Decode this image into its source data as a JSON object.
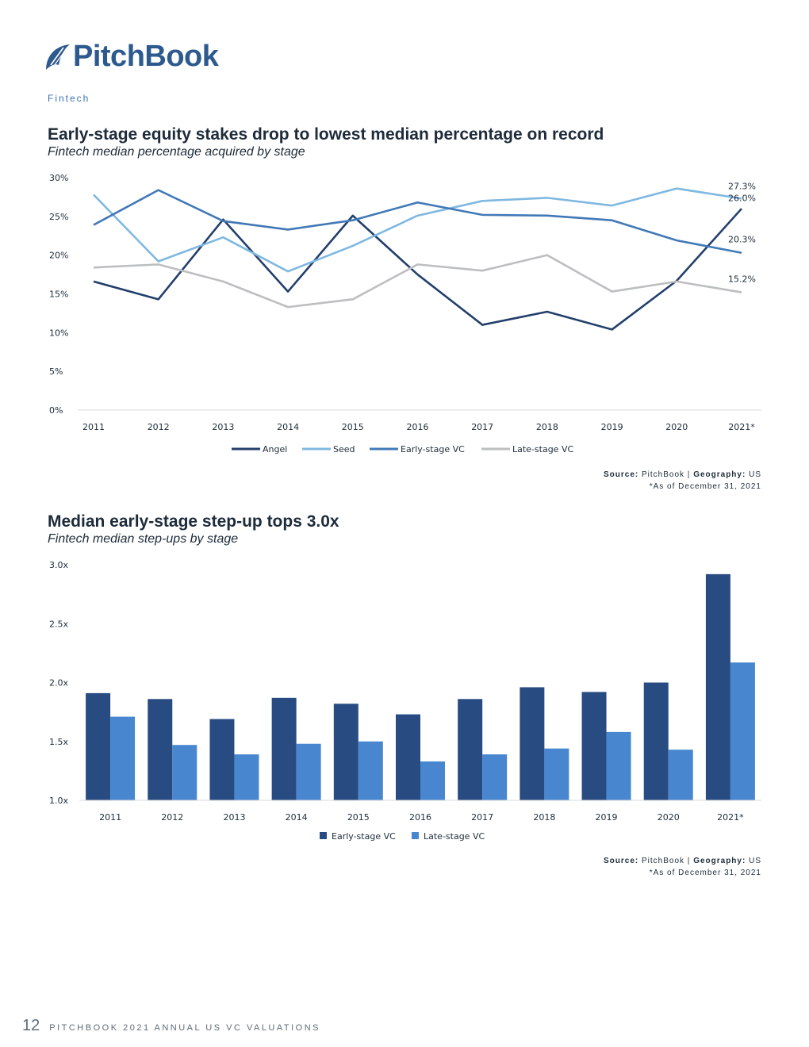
{
  "brand": {
    "name": "PitchBook"
  },
  "section_label": "Fintech",
  "chart1": {
    "title": "Early-stage equity stakes drop to lowest median percentage on record",
    "subtitle": "Fintech median percentage acquired by stage",
    "source_label": "Source:",
    "source_value": "PitchBook |",
    "geo_label": "Geography:",
    "geo_value": "US",
    "note": "*As of December 31, 2021"
  },
  "chart2": {
    "title": "Median early-stage step-up tops 3.0x",
    "subtitle": "Fintech median step-ups by stage",
    "source_label": "Source:",
    "source_value": "PitchBook |",
    "geo_label": "Geography:",
    "geo_value": "US",
    "note": "*As of December 31, 2021"
  },
  "footer": {
    "page": "12",
    "doc": "PITCHBOOK 2021 ANNUAL US VC VALUATIONS"
  },
  "chart_data": [
    {
      "type": "line",
      "x": [
        "2011",
        "2012",
        "2013",
        "2014",
        "2015",
        "2016",
        "2017",
        "2018",
        "2019",
        "2020",
        "2021*"
      ],
      "ylim": [
        0,
        30
      ],
      "yticks": [
        0,
        5,
        10,
        15,
        20,
        25,
        30
      ],
      "ytick_labels": [
        "0%",
        "5%",
        "10%",
        "15%",
        "20%",
        "25%",
        "30%"
      ],
      "grid": false,
      "legend": "bottom",
      "series": [
        {
          "name": "Angel",
          "color": "#233f6b",
          "values": [
            16.6,
            14.3,
            24.6,
            15.3,
            25.1,
            17.5,
            11.0,
            12.7,
            10.4,
            16.7,
            26.0
          ],
          "end_label": "26.0%"
        },
        {
          "name": "Seed",
          "color": "#7fb8e0",
          "values": [
            27.8,
            19.2,
            22.3,
            17.9,
            21.2,
            25.1,
            27.0,
            27.4,
            26.4,
            28.6,
            27.3
          ],
          "end_label": "27.3%"
        },
        {
          "name": "Early-stage VC",
          "color": "#4179b7",
          "values": [
            23.9,
            28.4,
            24.4,
            23.3,
            24.5,
            26.8,
            25.2,
            25.1,
            24.5,
            21.9,
            20.3
          ],
          "end_label": "20.3%"
        },
        {
          "name": "Late-stage VC",
          "color": "#bcbec0",
          "values": [
            18.4,
            18.8,
            16.6,
            13.3,
            14.3,
            18.8,
            18.0,
            20.0,
            15.3,
            16.6,
            15.2
          ],
          "end_label": "15.2%"
        }
      ]
    },
    {
      "type": "bar",
      "categories": [
        "2011",
        "2012",
        "2013",
        "2014",
        "2015",
        "2016",
        "2017",
        "2018",
        "2019",
        "2020",
        "2021*"
      ],
      "ylim": [
        1.0,
        3.0
      ],
      "yticks": [
        1.0,
        1.5,
        2.0,
        2.5,
        3.0
      ],
      "ytick_labels": [
        "1.0x",
        "1.5x",
        "2.0x",
        "2.5x",
        "3.0x"
      ],
      "grid": false,
      "legend": "bottom",
      "series": [
        {
          "name": "Early-stage VC",
          "color": "#284b82",
          "values": [
            1.91,
            1.86,
            1.69,
            1.87,
            1.82,
            1.73,
            1.86,
            1.96,
            1.92,
            2.0,
            2.92
          ]
        },
        {
          "name": "Late-stage VC",
          "color": "#4887cf",
          "values": [
            1.71,
            1.47,
            1.39,
            1.48,
            1.5,
            1.33,
            1.39,
            1.44,
            1.58,
            1.43,
            2.17
          ]
        }
      ]
    }
  ]
}
